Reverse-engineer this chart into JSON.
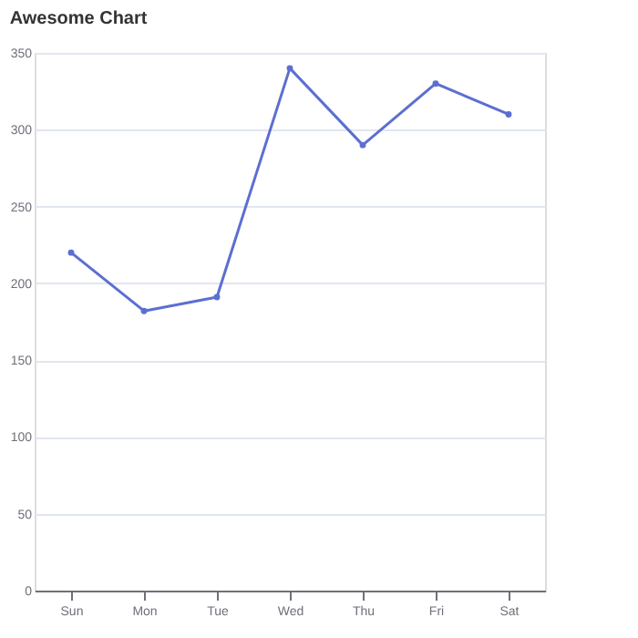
{
  "chart_data": {
    "type": "line",
    "title": "Awesome Chart",
    "categories": [
      "Sun",
      "Mon",
      "Tue",
      "Wed",
      "Thu",
      "Fri",
      "Sat"
    ],
    "series": [
      {
        "color": "#5c6fd0",
        "values": [
          220,
          182,
          191,
          340,
          290,
          330,
          310
        ]
      }
    ],
    "ylim": [
      0,
      350
    ],
    "yticks": [
      0,
      50,
      100,
      150,
      200,
      250,
      300,
      350
    ],
    "grid": "y",
    "marker": "circle",
    "line_style": "solid",
    "legend": false
  }
}
